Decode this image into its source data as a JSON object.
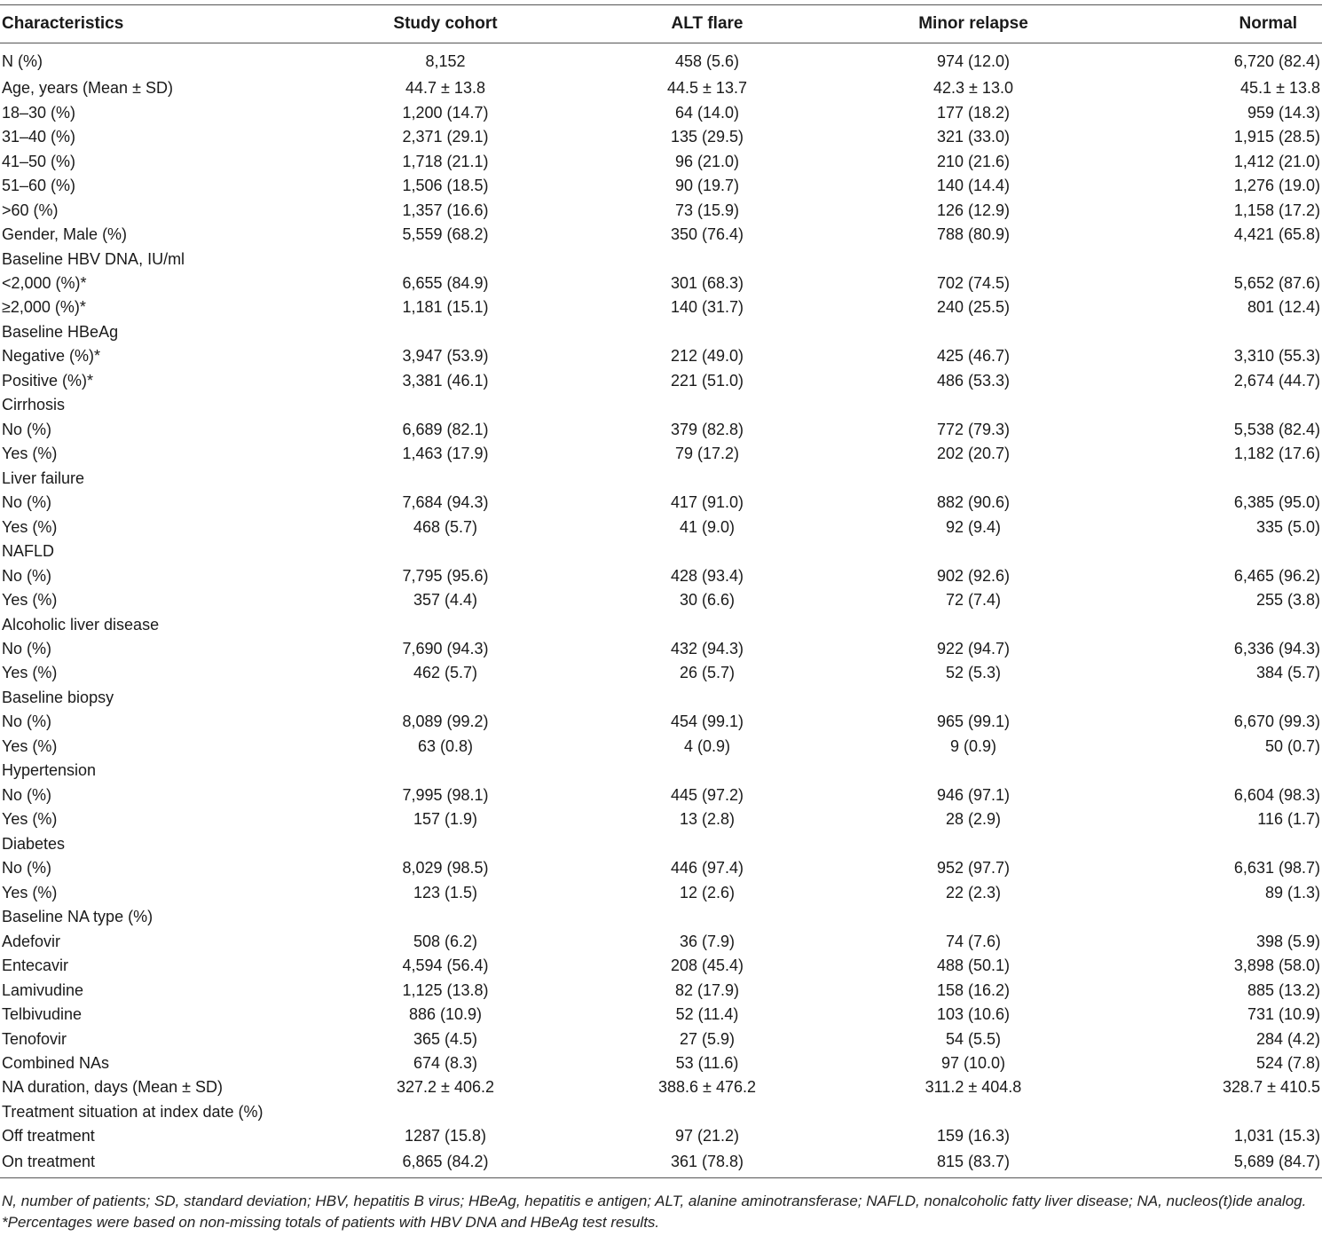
{
  "table": {
    "headers": [
      "Characteristics",
      "Study cohort",
      "ALT flare",
      "Minor relapse",
      "Normal"
    ],
    "rows": [
      [
        "N (%)",
        "8,152",
        "458 (5.6)",
        "974 (12.0)",
        "6,720 (82.4)"
      ],
      [
        "Age, years (Mean ± SD)",
        "44.7 ± 13.8",
        "44.5 ± 13.7",
        "42.3 ± 13.0",
        "45.1 ± 13.8"
      ],
      [
        "18–30 (%)",
        "1,200 (14.7)",
        "64 (14.0)",
        "177 (18.2)",
        "959 (14.3)"
      ],
      [
        "31–40 (%)",
        "2,371 (29.1)",
        "135 (29.5)",
        "321 (33.0)",
        "1,915 (28.5)"
      ],
      [
        "41–50 (%)",
        "1,718 (21.1)",
        "96 (21.0)",
        "210 (21.6)",
        "1,412 (21.0)"
      ],
      [
        "51–60 (%)",
        "1,506 (18.5)",
        "90 (19.7)",
        "140 (14.4)",
        "1,276 (19.0)"
      ],
      [
        ">60 (%)",
        "1,357 (16.6)",
        "73 (15.9)",
        "126 (12.9)",
        "1,158 (17.2)"
      ],
      [
        "Gender, Male (%)",
        "5,559 (68.2)",
        "350 (76.4)",
        "788 (80.9)",
        "4,421 (65.8)"
      ],
      [
        "Baseline HBV DNA, IU/ml",
        "",
        "",
        "",
        ""
      ],
      [
        "<2,000 (%)*",
        "6,655 (84.9)",
        "301 (68.3)",
        "702 (74.5)",
        "5,652 (87.6)"
      ],
      [
        "≥2,000 (%)*",
        "1,181 (15.1)",
        "140 (31.7)",
        "240 (25.5)",
        "801 (12.4)"
      ],
      [
        "Baseline HBeAg",
        "",
        "",
        "",
        ""
      ],
      [
        "Negative (%)*",
        "3,947 (53.9)",
        "212 (49.0)",
        "425 (46.7)",
        "3,310 (55.3)"
      ],
      [
        "Positive (%)*",
        "3,381 (46.1)",
        "221 (51.0)",
        "486 (53.3)",
        "2,674 (44.7)"
      ],
      [
        "Cirrhosis",
        "",
        "",
        "",
        ""
      ],
      [
        "No (%)",
        "6,689 (82.1)",
        "379 (82.8)",
        "772 (79.3)",
        "5,538 (82.4)"
      ],
      [
        "Yes (%)",
        "1,463 (17.9)",
        "79 (17.2)",
        "202 (20.7)",
        "1,182 (17.6)"
      ],
      [
        "Liver failure",
        "",
        "",
        "",
        ""
      ],
      [
        "No (%)",
        "7,684 (94.3)",
        "417 (91.0)",
        "882 (90.6)",
        "6,385 (95.0)"
      ],
      [
        "Yes (%)",
        "468 (5.7)",
        "41 (9.0)",
        "92 (9.4)",
        "335 (5.0)"
      ],
      [
        "NAFLD",
        "",
        "",
        "",
        ""
      ],
      [
        "No (%)",
        "7,795 (95.6)",
        "428 (93.4)",
        "902 (92.6)",
        "6,465 (96.2)"
      ],
      [
        "Yes (%)",
        "357 (4.4)",
        "30 (6.6)",
        "72 (7.4)",
        "255 (3.8)"
      ],
      [
        "Alcoholic liver disease",
        "",
        "",
        "",
        ""
      ],
      [
        "No (%)",
        "7,690 (94.3)",
        "432 (94.3)",
        "922 (94.7)",
        "6,336 (94.3)"
      ],
      [
        "Yes (%)",
        "462 (5.7)",
        "26 (5.7)",
        "52 (5.3)",
        "384 (5.7)"
      ],
      [
        "Baseline biopsy",
        "",
        "",
        "",
        ""
      ],
      [
        "No (%)",
        "8,089 (99.2)",
        "454 (99.1)",
        "965 (99.1)",
        "6,670 (99.3)"
      ],
      [
        "Yes (%)",
        "63 (0.8)",
        "4 (0.9)",
        "9 (0.9)",
        "50 (0.7)"
      ],
      [
        "Hypertension",
        "",
        "",
        "",
        ""
      ],
      [
        "No (%)",
        "7,995 (98.1)",
        "445 (97.2)",
        "946 (97.1)",
        "6,604 (98.3)"
      ],
      [
        "Yes (%)",
        "157 (1.9)",
        "13 (2.8)",
        "28 (2.9)",
        "116 (1.7)"
      ],
      [
        "Diabetes",
        "",
        "",
        "",
        ""
      ],
      [
        "No (%)",
        "8,029 (98.5)",
        "446 (97.4)",
        "952 (97.7)",
        "6,631 (98.7)"
      ],
      [
        "Yes (%)",
        "123 (1.5)",
        "12 (2.6)",
        "22 (2.3)",
        "89 (1.3)"
      ],
      [
        "Baseline NA type (%)",
        "",
        "",
        "",
        ""
      ],
      [
        "Adefovir",
        "508 (6.2)",
        "36 (7.9)",
        "74 (7.6)",
        "398 (5.9)"
      ],
      [
        "Entecavir",
        "4,594 (56.4)",
        "208 (45.4)",
        "488 (50.1)",
        "3,898 (58.0)"
      ],
      [
        "Lamivudine",
        "1,125 (13.8)",
        "82 (17.9)",
        "158 (16.2)",
        "885 (13.2)"
      ],
      [
        "Telbivudine",
        "886 (10.9)",
        "52 (11.4)",
        "103 (10.6)",
        "731 (10.9)"
      ],
      [
        "Tenofovir",
        "365 (4.5)",
        "27 (5.9)",
        "54 (5.5)",
        "284 (4.2)"
      ],
      [
        "Combined NAs",
        "674 (8.3)",
        "53 (11.6)",
        "97 (10.0)",
        "524 (7.8)"
      ],
      [
        "NA duration, days (Mean ± SD)",
        "327.2 ± 406.2",
        "388.6 ± 476.2",
        "311.2 ± 404.8",
        "328.7 ± 410.5"
      ],
      [
        "Treatment situation at index date (%)",
        "",
        "",
        "",
        ""
      ],
      [
        "Off treatment",
        "1287 (15.8)",
        "97 (21.2)",
        "159 (16.3)",
        "1,031 (15.3)"
      ],
      [
        "On treatment",
        "6,865 (84.2)",
        "361 (78.8)",
        "815 (83.7)",
        "5,689 (84.7)"
      ]
    ]
  },
  "footnotes": [
    "N, number of patients; SD, standard deviation; HBV, hepatitis B virus; HBeAg, hepatitis e antigen; ALT, alanine aminotransferase; NAFLD, nonalcoholic fatty liver disease; NA, nucleos(t)ide analog.",
    "*Percentages were based on non-missing totals of patients with HBV DNA and HBeAg test results."
  ]
}
